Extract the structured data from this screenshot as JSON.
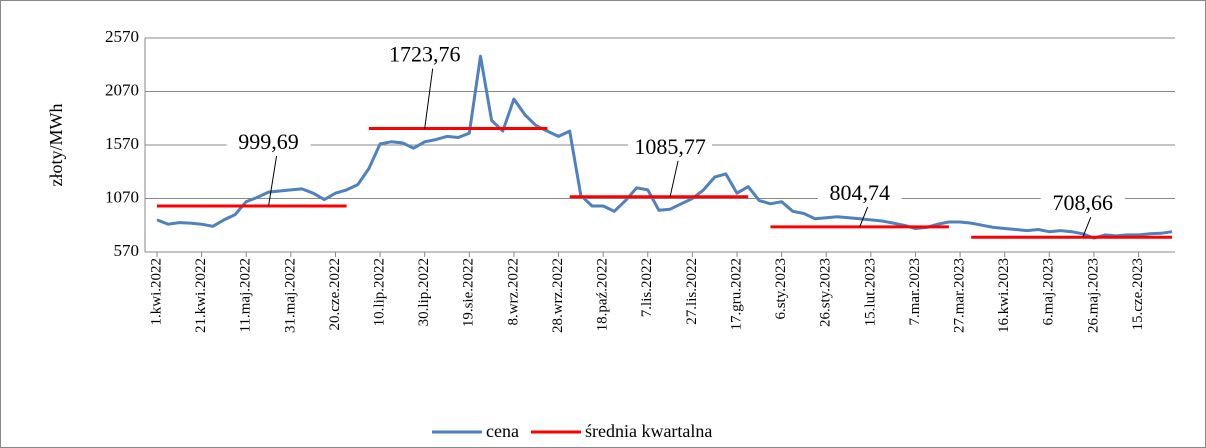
{
  "chart_data": {
    "type": "line",
    "y_label": "złoty/MWh",
    "x": [
      "1.kwi.2022",
      null,
      null,
      null,
      "21.kwi.2022",
      null,
      null,
      null,
      "11.maj.2022",
      null,
      null,
      null,
      "31.maj.2022",
      null,
      null,
      null,
      "20.cze.2022",
      null,
      null,
      null,
      "10.lip.2022",
      null,
      null,
      null,
      "30.lip.2022",
      null,
      null,
      null,
      "19.sie.2022",
      null,
      null,
      null,
      "8.wrz.2022",
      null,
      null,
      null,
      "28.wrz.2022",
      null,
      null,
      null,
      "18.paź.2022",
      null,
      null,
      null,
      "7.lis.2022",
      null,
      null,
      null,
      "27.lis.2022",
      null,
      null,
      null,
      "17.gru.2022",
      null,
      null,
      null,
      "6.sty.2023",
      null,
      null,
      null,
      "26.sty.2023",
      null,
      null,
      null,
      "15.lut.2023",
      null,
      null,
      null,
      "7.mar.2023",
      null,
      null,
      null,
      "27.mar.2023",
      null,
      null,
      null,
      "16.kwi.2023",
      null,
      null,
      null,
      "6.maj.2023",
      null,
      null,
      null,
      "26.maj.2023",
      null,
      null,
      null,
      "15.cze.2023",
      null,
      null,
      null
    ],
    "series": [
      {
        "name": "cena",
        "color": "#4f81bd",
        "values": [
          870,
          830,
          845,
          840,
          830,
          810,
          870,
          920,
          1040,
          1080,
          1130,
          1140,
          1150,
          1160,
          1120,
          1060,
          1120,
          1150,
          1200,
          1350,
          1580,
          1600,
          1590,
          1540,
          1600,
          1620,
          1650,
          1640,
          1680,
          2400,
          1800,
          1700,
          2000,
          1850,
          1750,
          1700,
          1650,
          1700,
          1100,
          1000,
          1000,
          950,
          1050,
          1170,
          1150,
          960,
          970,
          1020,
          1070,
          1150,
          1270,
          1300,
          1120,
          1180,
          1050,
          1020,
          1040,
          950,
          930,
          880,
          890,
          900,
          890,
          880,
          870,
          860,
          840,
          820,
          790,
          800,
          830,
          850,
          850,
          840,
          820,
          800,
          790,
          780,
          770,
          780,
          760,
          770,
          760,
          740,
          700,
          730,
          720,
          730,
          730,
          740,
          745,
          760
        ]
      },
      {
        "name": "średnia kwartalna",
        "color": "#ff0000",
        "values": [
          999.69,
          999.69,
          999.69,
          999.69,
          999.69,
          999.69,
          999.69,
          999.69,
          999.69,
          999.69,
          999.69,
          999.69,
          999.69,
          999.69,
          999.69,
          999.69,
          999.69,
          999.69,
          null,
          1723.76,
          1723.76,
          1723.76,
          1723.76,
          1723.76,
          1723.76,
          1723.76,
          1723.76,
          1723.76,
          1723.76,
          1723.76,
          1723.76,
          1723.76,
          1723.76,
          1723.76,
          1723.76,
          1723.76,
          null,
          1085.77,
          1085.77,
          1085.77,
          1085.77,
          1085.77,
          1085.77,
          1085.77,
          1085.77,
          1085.77,
          1085.77,
          1085.77,
          1085.77,
          1085.77,
          1085.77,
          1085.77,
          1085.77,
          1085.77,
          null,
          804.74,
          804.74,
          804.74,
          804.74,
          804.74,
          804.74,
          804.74,
          804.74,
          804.74,
          804.74,
          804.74,
          804.74,
          804.74,
          804.74,
          804.74,
          804.74,
          804.74,
          null,
          708.66,
          708.66,
          708.66,
          708.66,
          708.66,
          708.66,
          708.66,
          708.66,
          708.66,
          708.66,
          708.66,
          708.66,
          708.66,
          708.66,
          708.66,
          708.66,
          708.66,
          708.66,
          708.66
        ],
        "value_labels": [
          null,
          null,
          null,
          null,
          null,
          null,
          null,
          null,
          null,
          null,
          "999,69",
          null,
          null,
          null,
          null,
          null,
          null,
          null,
          null,
          null,
          null,
          null,
          null,
          null,
          "1723,76",
          null,
          null,
          null,
          null,
          null,
          null,
          null,
          null,
          null,
          null,
          null,
          null,
          null,
          null,
          null,
          null,
          null,
          null,
          null,
          null,
          null,
          "1085,77",
          null,
          null,
          null,
          null,
          null,
          null,
          null,
          null,
          null,
          null,
          null,
          null,
          null,
          null,
          null,
          null,
          "804,74",
          null,
          null,
          null,
          null,
          null,
          null,
          null,
          null,
          null,
          null,
          null,
          null,
          null,
          null,
          null,
          null,
          null,
          null,
          null,
          "708,66",
          null,
          null,
          null,
          null,
          null,
          null,
          null,
          null
        ]
      }
    ],
    "ylim": [
      570,
      2570
    ],
    "yticks": [
      570,
      1070,
      1570,
      2070,
      2570
    ],
    "grid": true,
    "legend": "bottom"
  }
}
